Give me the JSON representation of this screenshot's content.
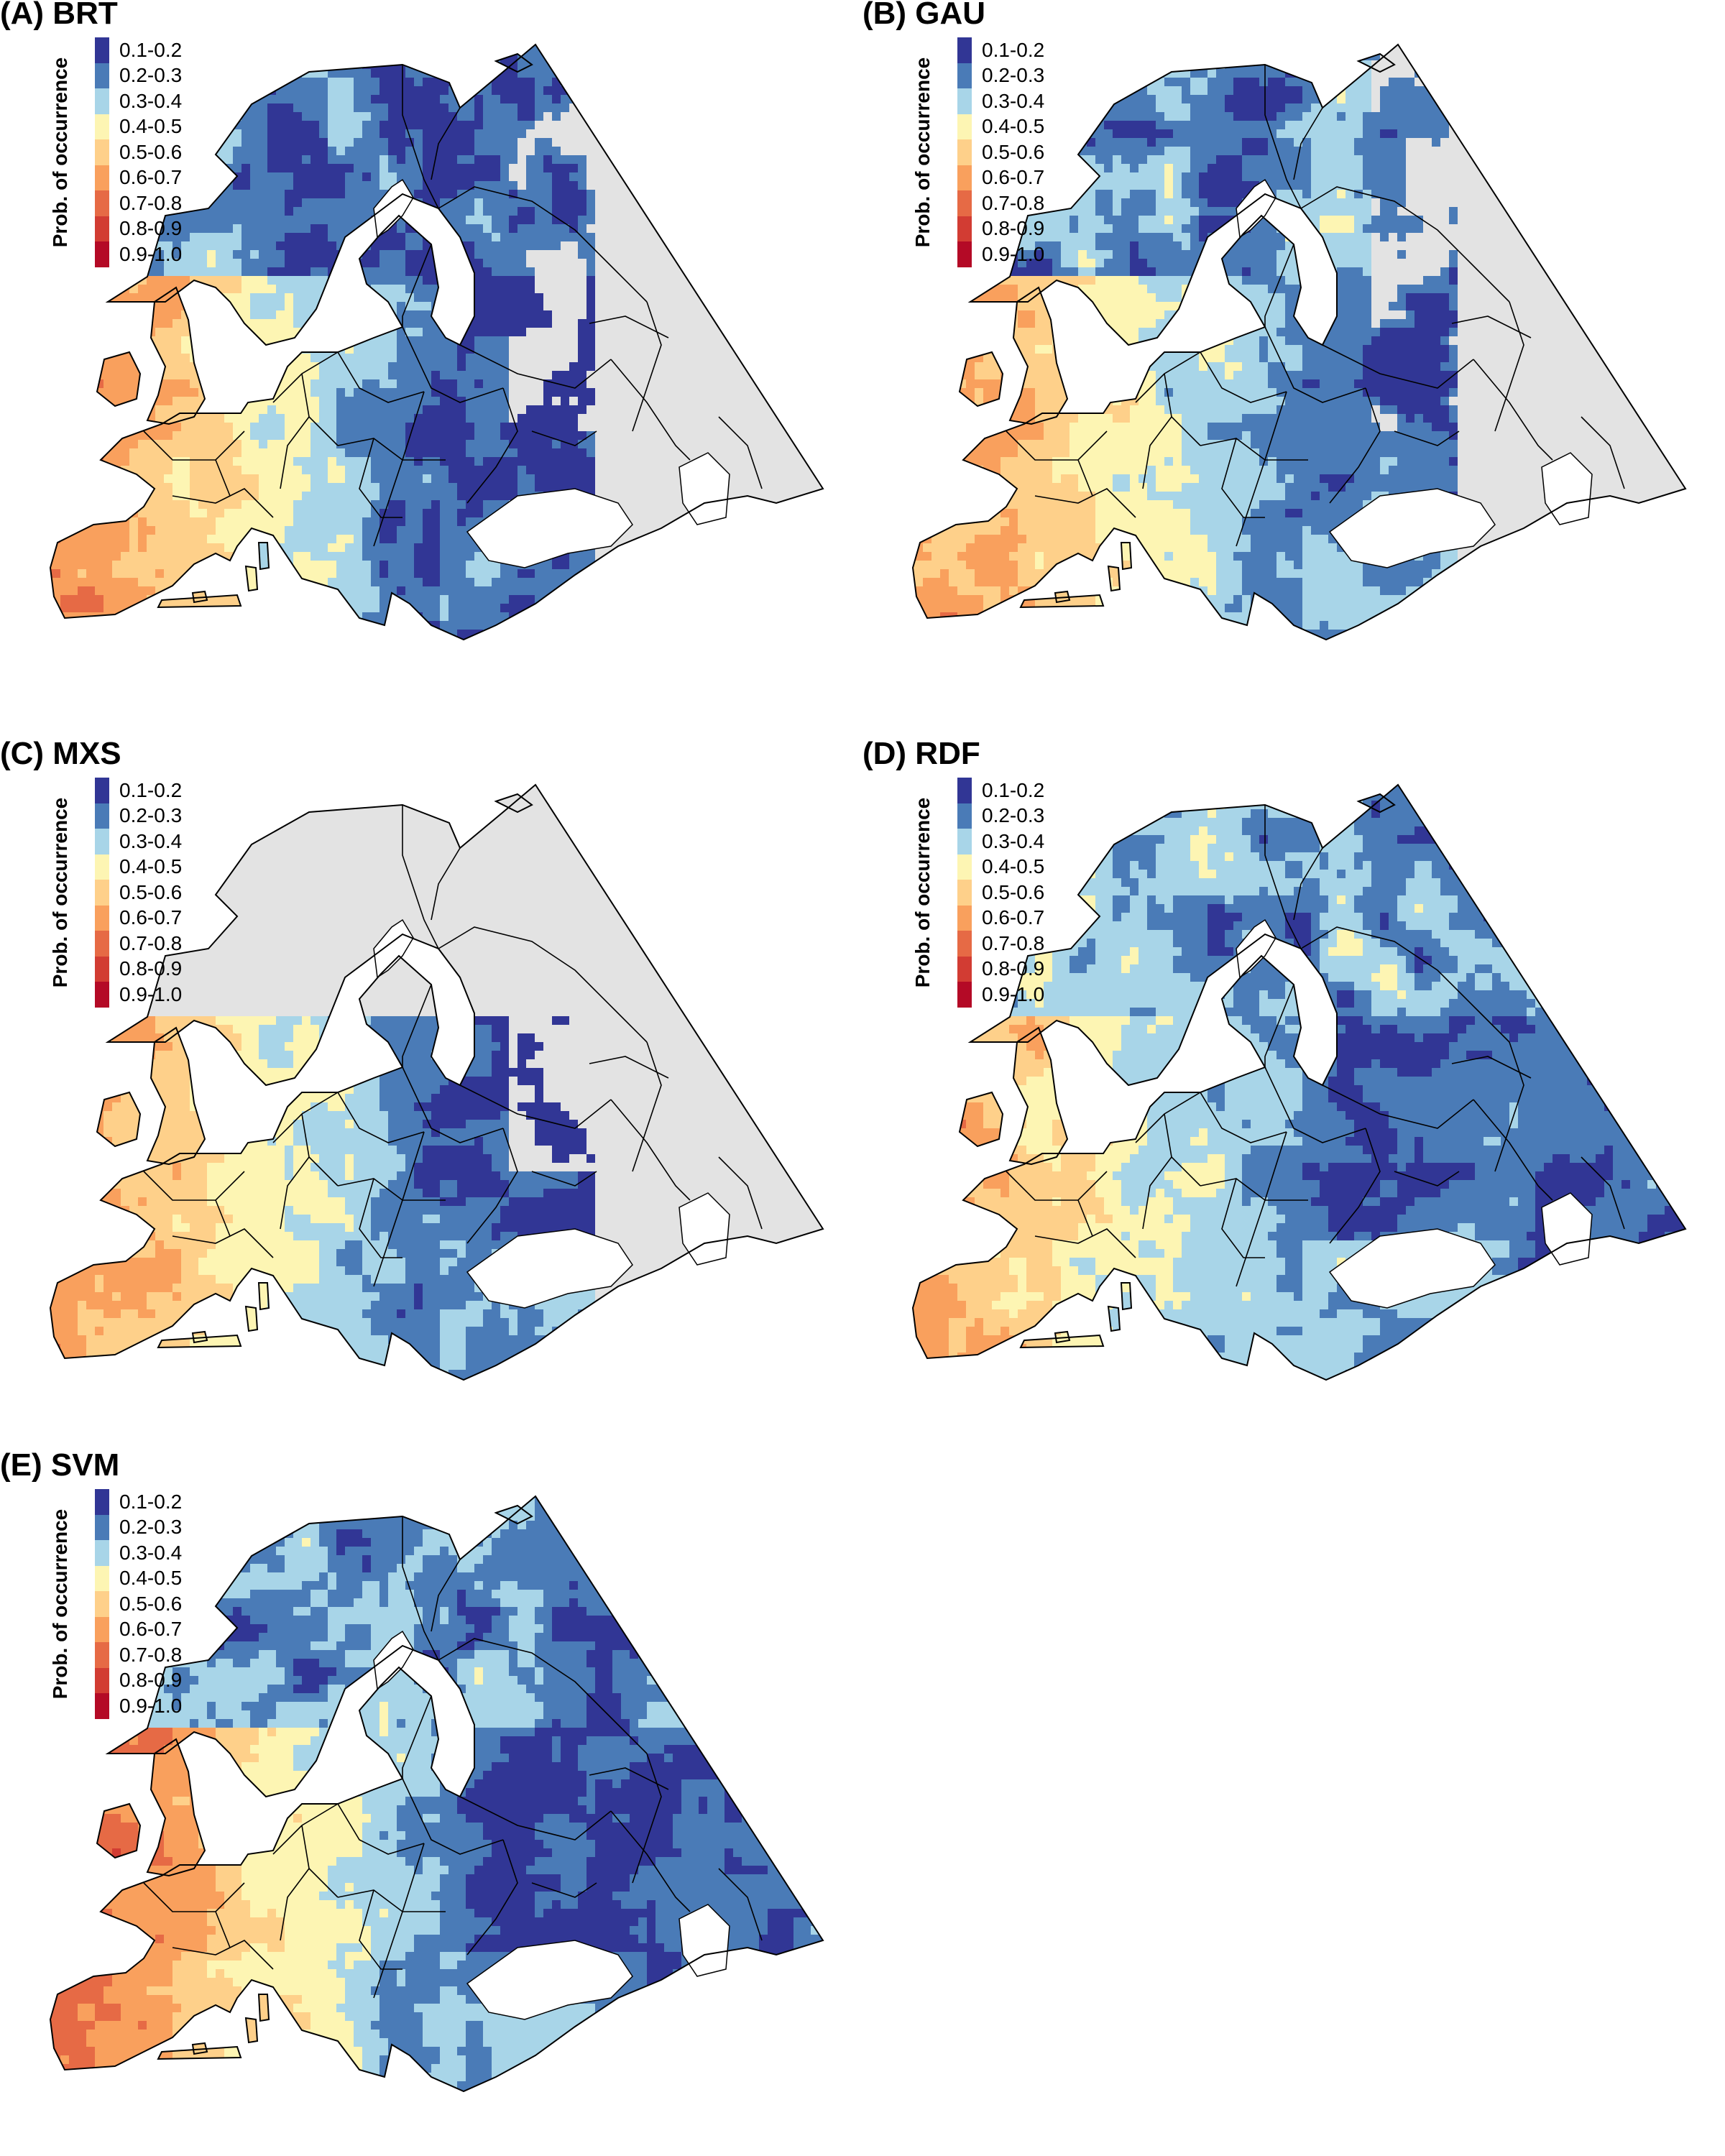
{
  "legend": {
    "title": "Prob. of occurrence",
    "classes": [
      {
        "label": "0.1-0.2",
        "color": "#313695"
      },
      {
        "label": "0.2-0.3",
        "color": "#4a7bb7"
      },
      {
        "label": "0.3-0.4",
        "color": "#a8d5e8"
      },
      {
        "label": "0.4-0.5",
        "color": "#fdf5b3"
      },
      {
        "label": "0.5-0.6",
        "color": "#fed08a"
      },
      {
        "label": "0.6-0.7",
        "color": "#f9a05d"
      },
      {
        "label": "0.7-0.8",
        "color": "#e66a45"
      },
      {
        "label": "0.8-0.9",
        "color": "#d23c33"
      },
      {
        "label": "0.9-1.0",
        "color": "#b40a26"
      }
    ]
  },
  "colors": {
    "no_data": "#e3e3e3",
    "sea": "#ffffff",
    "border": "#000000"
  },
  "panels": [
    {
      "id": "A",
      "title": "(A) BRT"
    },
    {
      "id": "B",
      "title": "(B) GAU"
    },
    {
      "id": "C",
      "title": "(C) MXS"
    },
    {
      "id": "D",
      "title": "(D) RDF"
    },
    {
      "id": "E",
      "title": "(E) SVM"
    }
  ]
}
